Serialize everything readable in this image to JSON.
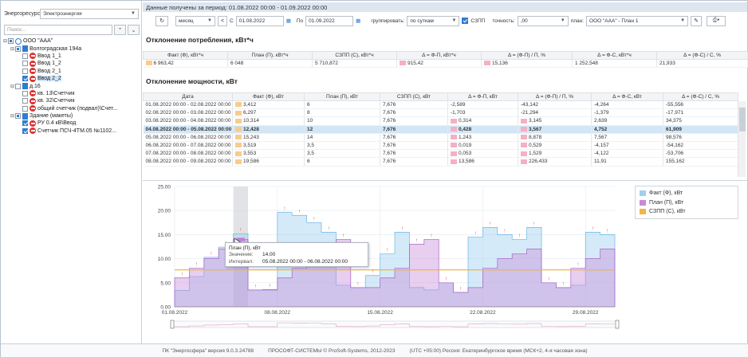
{
  "left": {
    "resource_label": "Энергоресурс",
    "resource_value": "Электроэнергия",
    "search_placeholder": "Поиск...",
    "tree": [
      {
        "label": "ООО \"ААА\"",
        "level": 0,
        "toggle": "⊟",
        "check": "part",
        "icon": "org"
      },
      {
        "label": "Волгоградская 194а",
        "level": 1,
        "toggle": "⊟",
        "check": "part",
        "icon": "bldg"
      },
      {
        "label": "Ввод 1_1",
        "level": 2,
        "toggle": "",
        "check": "off",
        "icon": "meter"
      },
      {
        "label": "Ввод 1_2",
        "level": 2,
        "toggle": "",
        "check": "off",
        "icon": "meter"
      },
      {
        "label": "Ввод 2_1",
        "level": 2,
        "toggle": "",
        "check": "off",
        "icon": "meter"
      },
      {
        "label": "Ввод 2_2",
        "level": 2,
        "toggle": "",
        "check": "on",
        "icon": "meter",
        "selected": true
      },
      {
        "label": "д.16",
        "level": 1,
        "toggle": "⊟",
        "check": "off",
        "icon": "bldg"
      },
      {
        "label": "кв. 13\\Счетчик",
        "level": 2,
        "toggle": "",
        "check": "off",
        "icon": "meter"
      },
      {
        "label": "кв. 32\\Счетчик",
        "level": 2,
        "toggle": "",
        "check": "off",
        "icon": "meter"
      },
      {
        "label": "общий счетчик (подвал)\\Счет...",
        "level": 2,
        "toggle": "",
        "check": "off",
        "icon": "meter"
      },
      {
        "label": "Здание (макеты)",
        "level": 1,
        "toggle": "⊟",
        "check": "part",
        "icon": "bldg"
      },
      {
        "label": "РУ 0.4 кВ\\Ввод",
        "level": 2,
        "toggle": "",
        "check": "on",
        "icon": "meter"
      },
      {
        "label": "Счетчик ПСЧ-4ТМ.05 №1102...",
        "level": 2,
        "toggle": "",
        "check": "on",
        "icon": "meter"
      }
    ]
  },
  "header": {
    "period_text": "Данные получены за период: 01.08.2022 00:00 - 01.09.2022 00:00"
  },
  "toolbar": {
    "refresh_icon": "↻",
    "period_unit": "месяц",
    "prev": "<",
    "from_label": "С",
    "from_date": "01.08.2022",
    "to_label": "По",
    "to_date": "01.09.2022",
    "group_label": "группировать:",
    "group_value": "по суткам",
    "szpp_label": "СЗПП",
    "precision_label": "точность:",
    "precision_value": ",00",
    "plan_label": "план:",
    "plan_value": "ООО \"ААА\" - План 1"
  },
  "consumption": {
    "title": "Отклонение потребления, кВт*ч",
    "headers": [
      "Факт (Ф), кВт*ч",
      "План (П), кВт*ч",
      "СЗПП (С), кВт*ч",
      "Δ = Ф-П, кВт*ч",
      "Δ = (Ф-П) / П, %",
      "Δ = Ф-С, кВт*ч",
      "Δ = (Ф-С) / С, %"
    ],
    "values": [
      "6 963,42",
      "6 048",
      "5 710,872",
      "915,42",
      "15,136",
      "1 252,548",
      "21,933"
    ]
  },
  "power": {
    "title": "Отклонение мощности, кВт",
    "headers": [
      "Дата",
      "Факт (Ф), кВт",
      "План (П), кВт",
      "СЗПП (С), кВт",
      "Δ = Ф-П, кВт",
      "Δ = (Ф-П) / П, %",
      "Δ = Ф-С, кВт",
      "Δ = (Ф-С) / С, %"
    ],
    "rows": [
      [
        "01.08.2022 00:00 - 02.08.2022 00:00",
        "3,412",
        "6",
        "7,676",
        "-2,589",
        "-43,142",
        "-4,264",
        "-55,556"
      ],
      [
        "02.08.2022 00:00 - 03.08.2022 00:00",
        "6,297",
        "8",
        "7,676",
        "-1,703",
        "-21,294",
        "-1,379",
        "-17,971"
      ],
      [
        "03.08.2022 00:00 - 04.08.2022 00:00",
        "10,314",
        "10",
        "7,676",
        "0,314",
        "3,145",
        "2,639",
        "34,375"
      ],
      [
        "04.08.2022 00:00 - 05.08.2022 00:00",
        "12,428",
        "12",
        "7,676",
        "0,428",
        "3,567",
        "4,752",
        "61,909"
      ],
      [
        "05.08.2022 00:00 - 06.08.2022 00:00",
        "15,243",
        "14",
        "7,676",
        "1,243",
        "8,878",
        "7,567",
        "98,576"
      ],
      [
        "06.08.2022 00:00 - 07.08.2022 00:00",
        "3,519",
        "3,5",
        "7,676",
        "0,019",
        "0,529",
        "-4,157",
        "-54,162"
      ],
      [
        "07.08.2022 00:00 - 08.08.2022 00:00",
        "3,553",
        "3,5",
        "7,676",
        "0,053",
        "1,529",
        "-4,122",
        "-53,706"
      ],
      [
        "08.08.2022 00:00 - 09.08.2022 00:00",
        "19,586",
        "6",
        "7,676",
        "13,586",
        "226,433",
        "11,91",
        "155,162"
      ]
    ],
    "highlight_row": 3
  },
  "chart_data": {
    "type": "area",
    "y_ticks": [
      "25.00",
      "20.00",
      "15.00",
      "10.00",
      "5.00",
      "0.00"
    ],
    "ylim": [
      0,
      25
    ],
    "x_ticks": [
      "01.08.2022",
      "08.08.2022",
      "15.08.2022",
      "22.08.2022",
      "29.08.2022"
    ],
    "series": [
      {
        "name": "Факт (Ф), кВт",
        "color": "#9fd0f0",
        "values": [
          3.4,
          6.3,
          10.3,
          12.4,
          15.2,
          3.5,
          3.6,
          19.6,
          19.0,
          17.5,
          15.5,
          4.5,
          4.0,
          6.5,
          11.0,
          15.5,
          4.0,
          3.5,
          5.0,
          3.0,
          14.5,
          16.5,
          15.0,
          14.0,
          16.5,
          5.0,
          4.0,
          4.5,
          15.5,
          15.0
        ]
      },
      {
        "name": "План (П), кВт",
        "color": "#c78ad9",
        "values": [
          6,
          8,
          10,
          12,
          14,
          3.5,
          3.5,
          6,
          8,
          10,
          12,
          14,
          4,
          4,
          6,
          8,
          13,
          14,
          5,
          3,
          4,
          8,
          10,
          11,
          12,
          5,
          4,
          8,
          10,
          12
        ]
      },
      {
        "name": "СЗПП (С), кВт",
        "color": "#f3b544",
        "values": [
          7.676,
          7.676,
          7.676,
          7.676,
          7.676,
          7.676,
          7.676,
          7.676,
          7.676,
          7.676,
          7.676,
          7.676,
          7.676,
          7.676,
          7.676,
          7.676,
          7.676,
          7.676,
          7.676,
          7.676,
          7.676,
          7.676,
          7.676,
          7.676,
          7.676,
          7.676,
          7.676,
          7.676,
          7.676,
          7.676
        ]
      }
    ],
    "tooltip": {
      "series": "План (П), кВт",
      "value_label": "Значение:",
      "value": "14.00",
      "interval_label": "Интервал:",
      "interval": "05.08.2022 00:00 - 06.08.2022 00:00"
    }
  },
  "status": {
    "product": "ПК \"Энергосфера\" версия 9.0.3.24788",
    "company": "ПРОСОФТ-СИСТЕМЫ © ProSoft-Systems, 2012-2023",
    "timezone": "(UTC +05:00) Россия: Екатеринбургское время (МСК+2, 4-я часовая зона)"
  }
}
